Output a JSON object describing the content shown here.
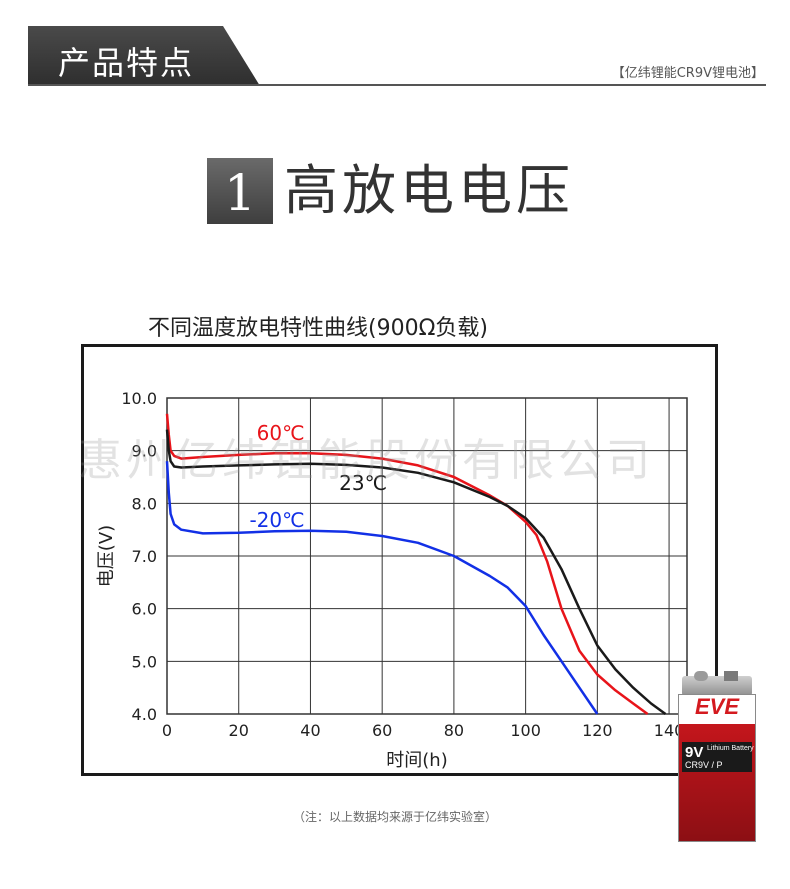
{
  "header": {
    "title": "产品特点",
    "brand_tag": "【亿纬锂能CR9V锂电池】"
  },
  "feature": {
    "number": "1",
    "title": "高放电电压"
  },
  "watermark": "惠州亿纬锂能股份有限公司",
  "footnote": "（注：以上数据均来源于亿纬实验室）",
  "battery": {
    "brand": "EVE",
    "voltage": "9V",
    "chemistry": "Lithium Battery",
    "model": "CR9V / P"
  },
  "chart_data": {
    "type": "line",
    "title": "不同温度放电特性曲线(900Ω负载)",
    "xlabel": "时间(h)",
    "ylabel": "电压(V)",
    "xlim": [
      0,
      145
    ],
    "ylim": [
      4.0,
      10.0
    ],
    "xticks": [
      "0",
      "20",
      "40",
      "60",
      "80",
      "100",
      "120",
      "140"
    ],
    "yticks": [
      "4.0",
      "5.0",
      "6.0",
      "7.0",
      "8.0",
      "9.0",
      "10.0"
    ],
    "grid": true,
    "series": [
      {
        "name": "60℃",
        "color": "#e8141a",
        "x": [
          0,
          0.5,
          1,
          2,
          4,
          10,
          20,
          30,
          40,
          50,
          60,
          70,
          80,
          90,
          95,
          100,
          103,
          106,
          110,
          115,
          120,
          125,
          130,
          134
        ],
        "y": [
          9.7,
          9.3,
          9.0,
          8.9,
          8.85,
          8.88,
          8.92,
          8.95,
          8.95,
          8.92,
          8.85,
          8.72,
          8.5,
          8.15,
          7.95,
          7.65,
          7.4,
          6.9,
          6.0,
          5.2,
          4.75,
          4.45,
          4.2,
          4.0
        ]
      },
      {
        "name": "23℃",
        "color": "#1a1a1a",
        "x": [
          0,
          0.5,
          1,
          2,
          4,
          10,
          20,
          30,
          40,
          50,
          60,
          70,
          80,
          90,
          95,
          100,
          105,
          110,
          115,
          120,
          125,
          130,
          135,
          139
        ],
        "y": [
          9.4,
          9.0,
          8.8,
          8.7,
          8.68,
          8.7,
          8.72,
          8.74,
          8.75,
          8.73,
          8.68,
          8.58,
          8.4,
          8.12,
          7.95,
          7.72,
          7.35,
          6.75,
          6.0,
          5.3,
          4.85,
          4.5,
          4.2,
          4.0
        ]
      },
      {
        "name": "-20℃",
        "color": "#1230e6",
        "x": [
          0,
          0.5,
          1,
          2,
          4,
          10,
          20,
          30,
          40,
          50,
          60,
          70,
          80,
          90,
          95,
          100,
          105,
          110,
          115,
          120
        ],
        "y": [
          8.8,
          8.2,
          7.8,
          7.6,
          7.5,
          7.43,
          7.44,
          7.47,
          7.48,
          7.46,
          7.38,
          7.25,
          7.0,
          6.62,
          6.4,
          6.05,
          5.5,
          5.0,
          4.5,
          4.0
        ]
      }
    ]
  }
}
